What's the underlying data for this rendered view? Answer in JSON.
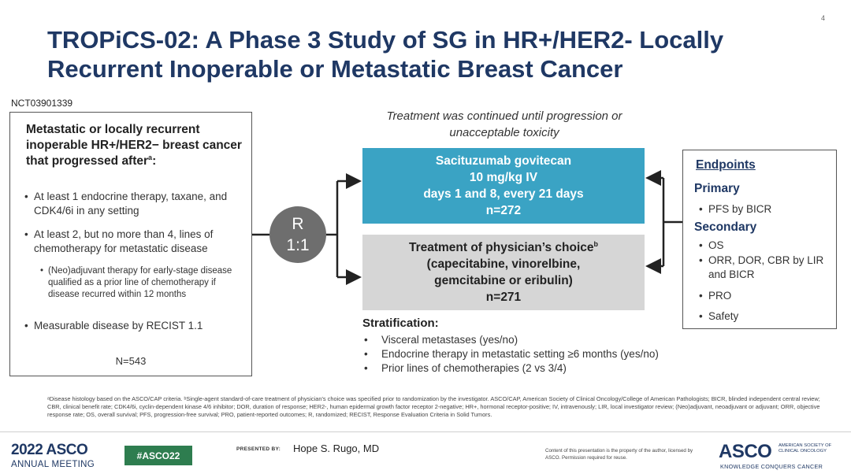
{
  "page_number": "4",
  "title": "TROPiCS-02: A Phase 3 Study of SG in HR+/HER2- Locally Recurrent Inoperable or Metastatic Breast Cancer",
  "nct_id": "NCT03901339",
  "eligibility": {
    "heading": "Metastatic or locally recurrent inoperable HR+/HER2− breast cancer that progressed after",
    "heading_sup": "a",
    "heading_end": ":",
    "bullets": [
      "At least 1 endocrine therapy, taxane, and CDK4/6i in any setting",
      "At least 2, but no more than 4, lines of chemotherapy for metastatic disease"
    ],
    "sub_bullet": "(Neo)adjuvant therapy for early-stage disease qualified as a prior line of chemotherapy if disease recurred within 12 months",
    "last_bullet": "Measurable disease by RECIST 1.1",
    "n": "N=543"
  },
  "randomization": {
    "line1": "R",
    "line2": "1:1"
  },
  "treatment_note": "Treatment was continued until progression or unacceptable toxicity",
  "arm_sg": {
    "line1": "Sacituzumab govitecan",
    "line2": "10 mg/kg IV",
    "line3": "days 1 and 8, every 21 days",
    "n": "n=272"
  },
  "arm_tpc": {
    "line1": "Treatment of physician’s choice",
    "line1_sup": "b",
    "line2": "(capecitabine, vinorelbine,",
    "line3": "gemcitabine or eribulin)",
    "n": "n=271"
  },
  "stratification": {
    "title": "Stratification:",
    "items": [
      "Visceral metastases (yes/no)",
      "Endocrine therapy in metastatic setting ≥6 months (yes/no)",
      "Prior lines of chemotherapies (2 vs 3/4)"
    ]
  },
  "endpoints": {
    "title": "Endpoints",
    "primary_label": "Primary",
    "primary": [
      "PFS by BICR"
    ],
    "secondary_label": "Secondary",
    "secondary": [
      "OS",
      "ORR, DOR, CBR by LIR and BICR",
      "PRO",
      "Safety"
    ]
  },
  "bullet_char": "•",
  "footnote": "ᵃDisease histology based on the ASCO/CAP criteria. ᵇSingle-agent standard-of-care treatment of physician’s choice was specified prior to randomization by the investigator. ASCO/CAP, American Society of Clinical Oncology/College of American Pathologists; BICR, blinded independent central review; CBR, clinical benefit rate; CDK4/6i, cyclin-dependent kinase 4/6 inhibitor; DOR, duration of response; HER2-, human epidermal growth factor receptor 2-negative; HR+, hormonal receptor-positive; IV, intravenously; LIR, local investigator review; (Neo)adjuvant, neoadjuvant or adjuvant; ORR, objective response rate; OS, overall survival; PFS, progression-free survival; PRO, patient-reported outcomes; R, randomized; RECIST, Response Evaluation Criteria in Solid Tumors.",
  "footer": {
    "meeting_year": "2022 ASCO",
    "meeting_name": "ANNUAL MEETING",
    "hashtag": "#ASCO22",
    "presented_by": "PRESENTED BY:",
    "presenter": "Hope S. Rugo, MD",
    "copyright": "Content of this presentation is the property of the author, licensed by ASCO. Permission required for reuse.",
    "asco": "ASCO",
    "asco_society": "AMERICAN SOCIETY OF CLINICAL ONCOLOGY",
    "asco_tagline": "KNOWLEDGE CONQUERS CANCER"
  },
  "colors": {
    "title": "#1f3864",
    "arm_sg": "#3aa3c4",
    "arm_tpc": "#d6d6d6",
    "randomization": "#6e6e6e",
    "hashtag": "#2e7d4f"
  }
}
